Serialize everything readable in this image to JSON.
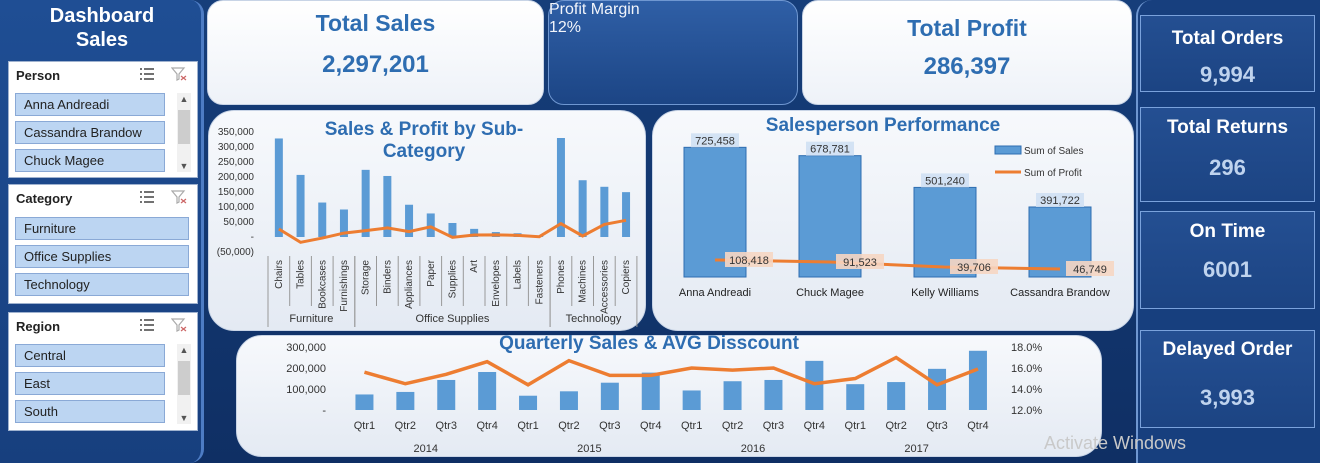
{
  "dashboard_title": [
    "Dashboard",
    "Sales"
  ],
  "slicers": {
    "person": {
      "title": "Person",
      "items": [
        "Anna Andreadi",
        "Cassandra Brandow",
        "Chuck Magee"
      ]
    },
    "category": {
      "title": "Category",
      "items": [
        "Furniture",
        "Office Supplies",
        "Technology"
      ]
    },
    "region": {
      "title": "Region",
      "items": [
        "Central",
        "East",
        "South"
      ]
    }
  },
  "kpis": {
    "total_sales": {
      "label": "Total Sales",
      "value": "2,297,201"
    },
    "profit_margin": {
      "label": "Profit Margin",
      "value": "12%"
    },
    "total_profit": {
      "label": "Total Profit",
      "value": "286,397"
    }
  },
  "right_kpis": {
    "total_orders": {
      "label": "Total Orders",
      "value": "9,994"
    },
    "total_returns": {
      "label": "Total Returns",
      "value": "296"
    },
    "on_time": {
      "label": "On Time",
      "value": "6001"
    },
    "delayed_order": {
      "label": "Delayed Order",
      "value": "3,993"
    }
  },
  "watermark": "Activate Windows",
  "chart_data": [
    {
      "type": "bar",
      "title": "Sales & Profit by Sub-Category",
      "yticks": [
        "350,000",
        "300,000",
        "250,000",
        "200,000",
        "150,000",
        "100,000",
        "50,000",
        "-",
        "(50,000)"
      ],
      "ylim": [
        -50000,
        350000
      ],
      "categories": [
        "Chairs",
        "Tables",
        "Bookcases",
        "Furnishings",
        "Storage",
        "Binders",
        "Appliances",
        "Paper",
        "Supplies",
        "Art",
        "Envelopes",
        "Labels",
        "Fasteners",
        "Phones",
        "Machines",
        "Accessories",
        "Copiers"
      ],
      "groups": [
        {
          "name": "Furniture",
          "count": 4
        },
        {
          "name": "Office Supplies",
          "count": 9
        },
        {
          "name": "Technology",
          "count": 4
        }
      ],
      "series": [
        {
          "name": "Sales",
          "values": [
            328449,
            206966,
            114880,
            91705,
            223844,
            203413,
            107532,
            78479,
            46674,
            27119,
            16476,
            12486,
            3024,
            330007,
            189239,
            167380,
            149528
          ],
          "color": "#5b9bd5"
        },
        {
          "name": "Profit",
          "values": [
            26590,
            -17725,
            -3473,
            13059,
            21279,
            30222,
            18138,
            34054,
            -1189,
            6528,
            6964,
            5546,
            950,
            44516,
            3385,
            41937,
            55618
          ],
          "color": "#ed7d31"
        }
      ]
    },
    {
      "type": "bar",
      "title": "Salesperson Performance",
      "categories": [
        "Anna Andreadi",
        "Chuck Magee",
        "Kelly Williams",
        "Cassandra Brandow"
      ],
      "series": [
        {
          "name": "Sum of Sales",
          "values": [
            725458,
            678781,
            501240,
            391722
          ],
          "labels": [
            "725,458",
            "678,781",
            "501,240",
            "391,722"
          ],
          "color": "#5b9bd5"
        },
        {
          "name": "Sum of Profit",
          "values": [
            108418,
            91523,
            39706,
            46749
          ],
          "labels": [
            "108,418",
            "91,523",
            "39,706",
            "46,749"
          ],
          "color": "#ed7d31"
        }
      ]
    },
    {
      "type": "bar",
      "title": "Quarterly Sales & AVG Disscount",
      "yticks_left": [
        "300,000",
        "200,000",
        "100,000",
        "-"
      ],
      "yticks_right": [
        "18.0%",
        "16.0%",
        "14.0%",
        "12.0%"
      ],
      "ylim_left": [
        0,
        300000
      ],
      "ylim_right": [
        0.12,
        0.18
      ],
      "categories": [
        "Qtr1",
        "Qtr2",
        "Qtr3",
        "Qtr4",
        "Qtr1",
        "Qtr2",
        "Qtr3",
        "Qtr4",
        "Qtr1",
        "Qtr2",
        "Qtr3",
        "Qtr4",
        "Qtr1",
        "Qtr2",
        "Qtr3",
        "Qtr4"
      ],
      "years": [
        {
          "name": "2014",
          "count": 4
        },
        {
          "name": "2015",
          "count": 4
        },
        {
          "name": "2016",
          "count": 4
        },
        {
          "name": "2017",
          "count": 4
        }
      ],
      "series": [
        {
          "name": "Sales",
          "axis": "left",
          "values": [
            74000,
            86000,
            143000,
            181000,
            68000,
            89000,
            130000,
            178000,
            93000,
            137000,
            143000,
            234000,
            123000,
            133000,
            196000,
            282000
          ],
          "color": "#5b9bd5"
        },
        {
          "name": "AVG Discount",
          "axis": "right",
          "values": [
            0.156,
            0.145,
            0.154,
            0.166,
            0.144,
            0.167,
            0.153,
            0.153,
            0.16,
            0.158,
            0.16,
            0.145,
            0.15,
            0.17,
            0.144,
            0.159
          ],
          "color": "#ed7d31"
        }
      ]
    }
  ]
}
